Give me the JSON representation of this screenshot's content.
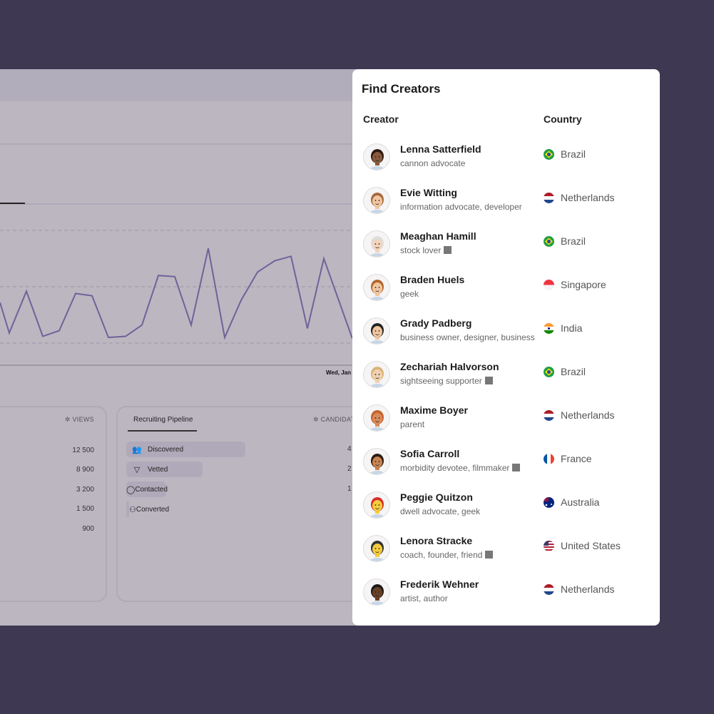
{
  "background_app": {
    "chart_data": {
      "type": "line",
      "x_tick_label_visible": "Wed, Jan",
      "grid": "dashed horizontal",
      "values": [
        36,
        9,
        46,
        6,
        11,
        44,
        42,
        5,
        6,
        16,
        60,
        59,
        16,
        84,
        5,
        38,
        63,
        73,
        77,
        13,
        75,
        4
      ],
      "color": "#6e6398"
    },
    "views_card": {
      "header": "VIEWS",
      "values": [
        "12 500",
        "8 900",
        "3 200",
        "1 500",
        "900"
      ]
    },
    "pipeline_card": {
      "tab": "Recruiting Pipeline",
      "header": "CANDIDAT",
      "stages": [
        {
          "label": "Discovered",
          "icon": "users-icon",
          "fill": 0.45,
          "count": "4"
        },
        {
          "label": "Vetted",
          "icon": "filter-icon",
          "fill": 0.29,
          "count": "2"
        },
        {
          "label": "Contacted",
          "icon": "chat-icon",
          "fill": 0.15,
          "count": "1"
        },
        {
          "label": "Converted",
          "icon": "user-check-icon",
          "fill": 0.01,
          "count": ""
        }
      ]
    }
  },
  "modal": {
    "title": "Find Creators",
    "col_creator": "Creator",
    "col_country": "Country",
    "creators": [
      {
        "name": "Lenna Satterfield",
        "tags": "cannon advocate",
        "sq": false,
        "country": "Brazil",
        "flag": "br",
        "skin": "#8a5a3c",
        "hair": "#2a1a12"
      },
      {
        "name": "Evie Witting",
        "tags": "information advocate, developer",
        "sq": false,
        "country": "Netherlands",
        "flag": "nl",
        "skin": "#f0c7a0",
        "hair": "#a8683a"
      },
      {
        "name": "Meaghan Hamill",
        "tags": "stock lover",
        "sq": true,
        "country": "Brazil",
        "flag": "br",
        "skin": "#f3d5bd",
        "hair": "#ddd"
      },
      {
        "name": "Braden Huels",
        "tags": "geek",
        "sq": false,
        "country": "Singapore",
        "flag": "sg",
        "skin": "#f0c7a0",
        "hair": "#b5652e"
      },
      {
        "name": "Grady Padberg",
        "tags": "business owner, designer, business",
        "sq": false,
        "country": "India",
        "flag": "in",
        "skin": "#f0c7a0",
        "hair": "#222"
      },
      {
        "name": "Zechariah Halvorson",
        "tags": "sightseeing supporter",
        "sq": true,
        "country": "Brazil",
        "flag": "br",
        "skin": "#f0d2b0",
        "hair": "#d9b37a"
      },
      {
        "name": "Maxime Boyer",
        "tags": "parent",
        "sq": false,
        "country": "Netherlands",
        "flag": "nl",
        "skin": "#d98a5a",
        "hair": "#c4632e"
      },
      {
        "name": "Sofia Carroll",
        "tags": "morbidity devotee, filmmaker",
        "sq": true,
        "country": "France",
        "flag": "fr",
        "skin": "#c98450",
        "hair": "#2a1a12"
      },
      {
        "name": "Peggie Quitzon",
        "tags": "dwell advocate, geek",
        "sq": false,
        "country": "Australia",
        "flag": "au",
        "skin": "#f5cc3c",
        "hair": "#d62d2d"
      },
      {
        "name": "Lenora Stracke",
        "tags": "coach, founder, friend",
        "sq": true,
        "country": "United States",
        "flag": "us",
        "skin": "#f5cc3c",
        "hair": "#333"
      },
      {
        "name": "Frederik Wehner",
        "tags": "artist, author",
        "sq": false,
        "country": "Netherlands",
        "flag": "nl",
        "skin": "#6b4026",
        "hair": "#1a1a1a"
      }
    ]
  }
}
